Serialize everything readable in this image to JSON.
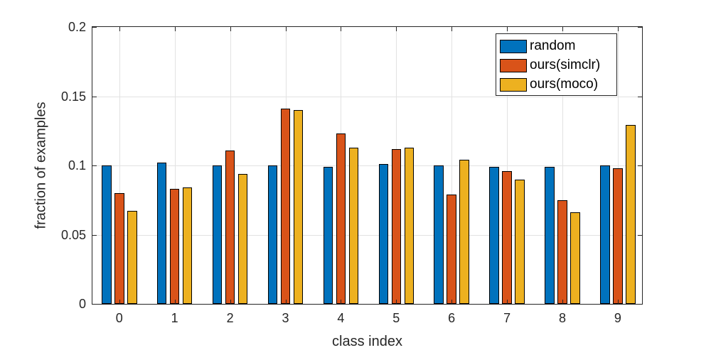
{
  "chart_data": {
    "type": "bar",
    "title": "",
    "xlabel": "class index",
    "ylabel": "fraction of examples",
    "categories": [
      "0",
      "1",
      "2",
      "3",
      "4",
      "5",
      "6",
      "7",
      "8",
      "9"
    ],
    "series": [
      {
        "name": "random",
        "color": "#0072BD",
        "values": [
          0.1,
          0.102,
          0.1,
          0.1,
          0.099,
          0.101,
          0.1,
          0.099,
          0.099,
          0.1
        ]
      },
      {
        "name": "ours(simclr)",
        "color": "#D95319",
        "values": [
          0.08,
          0.083,
          0.111,
          0.141,
          0.123,
          0.112,
          0.079,
          0.096,
          0.075,
          0.098
        ]
      },
      {
        "name": "ours(moco)",
        "color": "#EDB120",
        "values": [
          0.067,
          0.084,
          0.094,
          0.14,
          0.113,
          0.113,
          0.104,
          0.09,
          0.066,
          0.129
        ]
      }
    ],
    "ylim": [
      0,
      0.2
    ],
    "yticks": [
      0,
      0.05,
      0.1,
      0.15,
      0.2
    ],
    "ytick_labels": [
      "0",
      "0.05",
      "0.1",
      "0.15",
      "0.2"
    ],
    "grid": true,
    "legend_position": "top-right",
    "axis_color": "#262626",
    "grid_color": "#e2e2e2"
  }
}
